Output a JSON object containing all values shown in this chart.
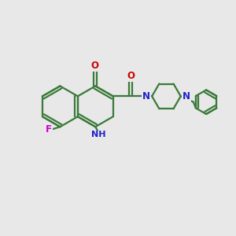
{
  "bg_color": "#e8e8e8",
  "bond_color": "#3a7a3a",
  "N_color": "#2020cc",
  "O_color": "#cc0000",
  "F_color": "#cc00cc",
  "lw": 1.6,
  "lw2": 1.0,
  "fs_label": 8.5,
  "xlim": [
    0,
    10
  ],
  "ylim": [
    0,
    10
  ],
  "figsize": [
    3.0,
    3.0
  ],
  "dpi": 100
}
